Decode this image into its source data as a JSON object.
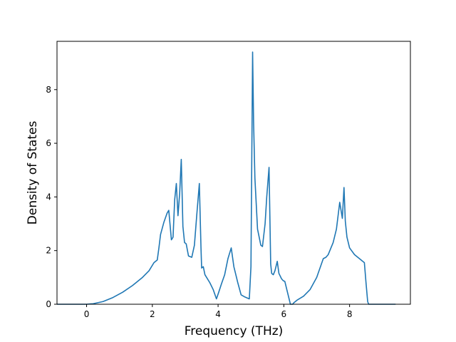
{
  "chart_data": {
    "type": "line",
    "title": "",
    "xlabel": "Frequency (THz)",
    "ylabel": "Density of States",
    "xlim": [
      -0.9,
      9.85
    ],
    "ylim": [
      0,
      9.8
    ],
    "xticks": [
      0,
      2,
      4,
      6,
      8
    ],
    "yticks": [
      0,
      2,
      4,
      6,
      8
    ],
    "grid": false,
    "line_color": "#1f77b4",
    "series": [
      {
        "x": [
          -0.9,
          0.0,
          0.2,
          0.5,
          0.8,
          1.1,
          1.4,
          1.7,
          1.9,
          2.05,
          2.15,
          2.2,
          2.25,
          2.35,
          2.45,
          2.5,
          2.58,
          2.63,
          2.68,
          2.73,
          2.78,
          2.83,
          2.88,
          2.93,
          2.98,
          3.03,
          3.1,
          3.2,
          3.28,
          3.35,
          3.43,
          3.48,
          3.5,
          3.55,
          3.6,
          3.65,
          3.75,
          3.85,
          3.95,
          4.02,
          4.1,
          4.2,
          4.3,
          4.4,
          4.48,
          4.55,
          4.6,
          4.7,
          4.8,
          4.95,
          5.0,
          5.05,
          5.08,
          5.12,
          5.2,
          5.3,
          5.35,
          5.43,
          5.48,
          5.55,
          5.6,
          5.63,
          5.68,
          5.73,
          5.8,
          5.85,
          5.93,
          5.98,
          6.03,
          6.1,
          6.2,
          6.27,
          6.3,
          6.35,
          6.4,
          6.6,
          6.8,
          7.0,
          7.2,
          7.28,
          7.35,
          7.5,
          7.6,
          7.7,
          7.78,
          7.83,
          7.87,
          7.92,
          8.0,
          8.15,
          8.3,
          8.45,
          8.5,
          8.55,
          8.58,
          8.62,
          9.4
        ],
        "y": [
          0.0,
          0.0,
          0.02,
          0.1,
          0.25,
          0.45,
          0.7,
          1.0,
          1.25,
          1.55,
          1.65,
          2.1,
          2.6,
          3.05,
          3.4,
          3.5,
          2.4,
          2.5,
          3.9,
          4.5,
          3.3,
          4.1,
          5.4,
          2.9,
          2.3,
          2.25,
          1.8,
          1.75,
          2.2,
          3.3,
          4.5,
          2.1,
          1.35,
          1.4,
          1.1,
          1.0,
          0.8,
          0.55,
          0.2,
          0.45,
          0.75,
          1.1,
          1.7,
          2.1,
          1.4,
          1.05,
          0.8,
          0.35,
          0.28,
          0.2,
          1.4,
          9.4,
          6.8,
          4.7,
          2.8,
          2.2,
          2.15,
          3.0,
          4.0,
          5.1,
          1.5,
          1.15,
          1.1,
          1.25,
          1.6,
          1.15,
          0.95,
          0.88,
          0.85,
          0.5,
          0.0,
          0.0,
          0.05,
          0.1,
          0.15,
          0.3,
          0.55,
          1.0,
          1.7,
          1.75,
          1.85,
          2.3,
          2.8,
          3.8,
          3.2,
          4.35,
          3.1,
          2.5,
          2.1,
          1.85,
          1.7,
          1.55,
          0.8,
          0.1,
          0.0,
          0.0,
          0.0
        ]
      }
    ]
  }
}
